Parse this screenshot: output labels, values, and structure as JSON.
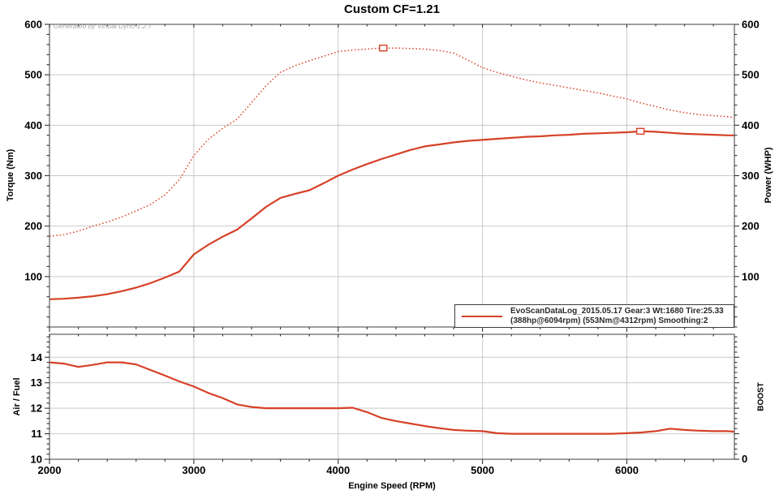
{
  "title": "Custom CF=1.21",
  "watermark": "Generated by Virtual Dyno 1.2.7",
  "legend": {
    "line1": "EvoScanDataLog_2015.05.17 Gear:3 Wt:1680 Tire:25.33",
    "line2": "(388hp@6094rpm) (553Nm@4312rpm) Smoothing:2"
  },
  "colors": {
    "curve": "#d64127",
    "curve_dotted": "#da4a31",
    "grid": "#c9c9c9",
    "frame": "#6a6a6a",
    "tick": "#333333",
    "text": "#000000"
  },
  "chart_data": [
    {
      "type": "line",
      "title": "Custom CF=1.21",
      "x_label": "Engine Speed (RPM)",
      "x_range": [
        2000,
        6745
      ],
      "x_ticks": [
        2000,
        3000,
        4000,
        5000,
        6000
      ],
      "x_minor_step": 200,
      "grid": true,
      "legend_position": "bottom-right",
      "y_left": {
        "label": "Torque (Nm)",
        "range": [
          0,
          600
        ],
        "ticks": [
          100,
          200,
          300,
          400,
          500,
          600
        ],
        "minor_step": 20
      },
      "y_right": {
        "label": "Power (WHP)",
        "range": [
          0,
          600
        ],
        "ticks": [
          100,
          200,
          300,
          400,
          500,
          600
        ],
        "minor_step": 20
      },
      "x": [
        2000,
        2100,
        2200,
        2300,
        2400,
        2500,
        2600,
        2700,
        2800,
        2900,
        3000,
        3100,
        3200,
        3300,
        3400,
        3500,
        3600,
        3700,
        3800,
        3900,
        4000,
        4100,
        4200,
        4300,
        4400,
        4500,
        4600,
        4700,
        4800,
        4900,
        5000,
        5100,
        5200,
        5300,
        5400,
        5500,
        5600,
        5700,
        5800,
        5900,
        6000,
        6100,
        6200,
        6300,
        6400,
        6500,
        6600,
        6700,
        6745
      ],
      "series": [
        {
          "name": "Torque (Nm)",
          "style": "dotted",
          "peak": {
            "x": 4312,
            "y": 553,
            "label": "553Nm@4312rpm"
          },
          "values": [
            180,
            183,
            190,
            200,
            208,
            218,
            230,
            243,
            262,
            292,
            340,
            372,
            394,
            412,
            445,
            478,
            505,
            518,
            528,
            537,
            546,
            549,
            551,
            553,
            553,
            552,
            551,
            548,
            543,
            529,
            514,
            505,
            497,
            490,
            484,
            479,
            474,
            469,
            464,
            458,
            452,
            444,
            437,
            430,
            425,
            421,
            419,
            417,
            415
          ]
        },
        {
          "name": "Power (WHP)",
          "style": "solid",
          "peak": {
            "x": 6094,
            "y": 388,
            "label": "388hp@6094rpm"
          },
          "values": [
            55,
            56,
            58,
            61,
            65,
            71,
            78,
            87,
            98,
            110,
            144,
            163,
            179,
            193,
            215,
            238,
            256,
            264,
            271,
            285,
            300,
            312,
            323,
            333,
            342,
            351,
            358,
            362,
            366,
            369,
            371,
            373,
            375,
            377,
            378,
            380,
            381,
            383,
            384,
            385,
            386,
            388,
            387,
            385,
            383,
            382,
            381,
            380,
            380
          ]
        }
      ]
    },
    {
      "type": "line",
      "x_label": "Engine Speed (RPM)",
      "x_range": [
        2000,
        6745
      ],
      "x_ticks": [
        2000,
        3000,
        4000,
        5000,
        6000
      ],
      "x_minor_step": 200,
      "grid": true,
      "y_left": {
        "label": "Air / Fuel",
        "range": [
          10,
          14.9
        ],
        "ticks": [
          10,
          11,
          12,
          13,
          14
        ],
        "minor_step": 0.2
      },
      "y_right": {
        "label": "BOOST",
        "tick_labels": [
          "0"
        ]
      },
      "x": [
        2000,
        2100,
        2200,
        2300,
        2400,
        2500,
        2600,
        2700,
        2800,
        2900,
        3000,
        3100,
        3200,
        3300,
        3400,
        3500,
        3600,
        3700,
        3800,
        3900,
        4000,
        4100,
        4200,
        4300,
        4400,
        4500,
        4600,
        4700,
        4800,
        4900,
        5000,
        5100,
        5200,
        5300,
        5400,
        5500,
        5600,
        5700,
        5800,
        5900,
        6000,
        6100,
        6200,
        6300,
        6400,
        6500,
        6600,
        6700,
        6745
      ],
      "series": [
        {
          "name": "Air / Fuel",
          "style": "solid",
          "values": [
            13.8,
            13.75,
            13.62,
            13.7,
            13.8,
            13.8,
            13.72,
            13.5,
            13.28,
            13.05,
            12.85,
            12.6,
            12.4,
            12.15,
            12.05,
            12.0,
            12.0,
            12.0,
            12.0,
            12.0,
            12.0,
            12.02,
            11.85,
            11.62,
            11.5,
            11.4,
            11.3,
            11.22,
            11.15,
            11.12,
            11.1,
            11.02,
            11.0,
            11.0,
            11.0,
            11.0,
            11.0,
            11.0,
            11.0,
            11.0,
            11.02,
            11.05,
            11.1,
            11.2,
            11.15,
            11.12,
            11.1,
            11.1,
            11.08
          ]
        }
      ]
    }
  ]
}
